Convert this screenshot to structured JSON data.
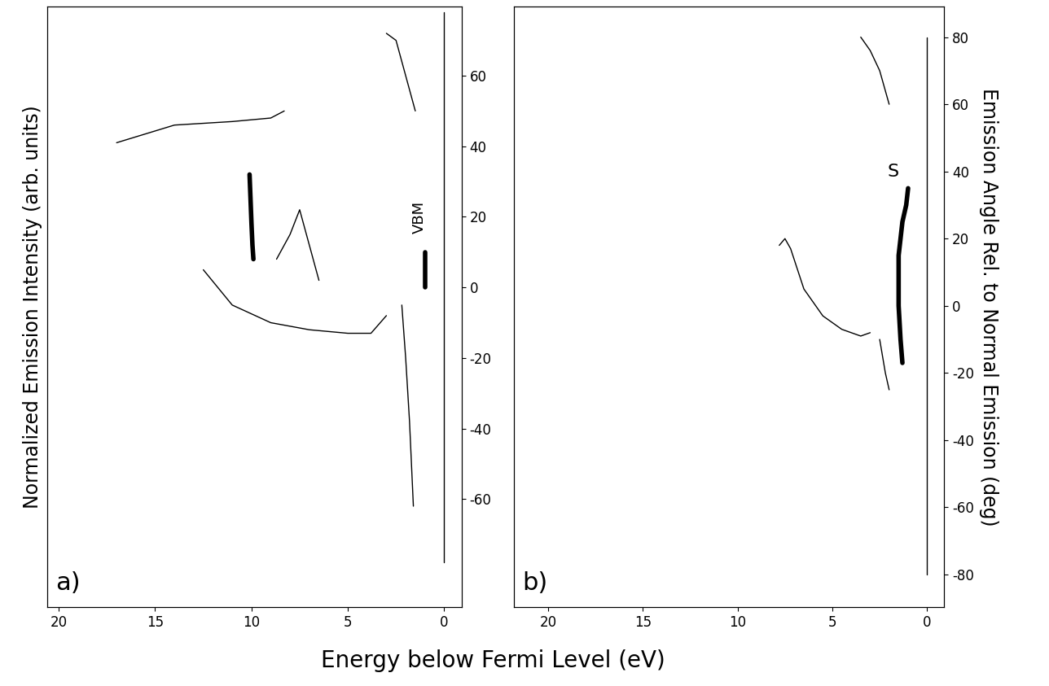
{
  "xlabel": "Energy below Fermi Level (eV)",
  "chart_data": [
    {
      "type": "line",
      "label": "a)",
      "ylabel": "Normalized Emission Intensity (arb. units)",
      "xlim": [
        20.6,
        -0.9
      ],
      "xticks": [
        20,
        15,
        10,
        5,
        0
      ],
      "y2lim": [
        -90.6,
        79.5
      ],
      "y2ticks": [
        -60,
        -40,
        -20,
        0,
        20,
        40,
        60
      ],
      "annotations": [
        {
          "text": "VBM",
          "x": 1.3,
          "y": 20
        }
      ],
      "series": [
        {
          "x": [
            10.1,
            10.05,
            10.0,
            9.95,
            9.9
          ],
          "values": [
            32,
            25,
            18,
            12,
            8
          ],
          "color": "#000000",
          "line_style": "thick",
          "axis": "y2"
        },
        {
          "x": [
            1.0,
            1.0
          ],
          "values": [
            0,
            10
          ],
          "color": "#000000",
          "line_style": "thick",
          "axis": "y2"
        },
        {
          "x": [
            0,
            0
          ],
          "values": [
            -78,
            78
          ],
          "color": "#000000",
          "line_style": "thin",
          "axis": "y2"
        },
        {
          "x": [
            8.7,
            8.0,
            7.5,
            7.0,
            6.5
          ],
          "values": [
            8,
            15,
            22,
            12,
            2
          ],
          "color": "#000000",
          "line_style": "thin",
          "axis": "y2"
        },
        {
          "x": [
            12.5,
            11.0,
            9.0,
            7.0,
            5.0,
            3.8,
            3.0
          ],
          "values": [
            5,
            -5,
            -10,
            -12,
            -13,
            -13,
            -8
          ],
          "color": "#000000",
          "line_style": "thin",
          "axis": "y2"
        },
        {
          "x": [
            3.0,
            2.5,
            2.0,
            1.5
          ],
          "values": [
            72,
            70,
            60,
            50
          ],
          "color": "#000000",
          "line_style": "thin",
          "axis": "y2"
        },
        {
          "x": [
            17.0,
            14.0,
            11.0,
            9.0,
            8.3
          ],
          "values": [
            41,
            46,
            47,
            48,
            50
          ],
          "color": "#000000",
          "line_style": "thin",
          "axis": "y2"
        },
        {
          "x": [
            2.2,
            2.0,
            1.8,
            1.6
          ],
          "values": [
            -5,
            -20,
            -38,
            -62
          ],
          "color": "#000000",
          "line_style": "thin",
          "axis": "y2"
        }
      ]
    },
    {
      "type": "line",
      "label": "b)",
      "y2label": "Emission Angle Rel. to Normal Emission (deg)",
      "xlim": [
        21.8,
        -0.9
      ],
      "xticks": [
        20,
        15,
        10,
        5,
        0
      ],
      "y2lim": [
        -89.7,
        89
      ],
      "y2ticks": [
        -80,
        -60,
        -40,
        -20,
        0,
        20,
        40,
        60,
        80
      ],
      "annotations": [
        {
          "text": "S",
          "x": 1.8,
          "y": 40
        }
      ],
      "series": [
        {
          "x": [
            1.0,
            1.1,
            1.3,
            1.5,
            1.5,
            1.4,
            1.3
          ],
          "values": [
            35,
            30,
            25,
            15,
            0,
            -10,
            -17
          ],
          "color": "#000000",
          "line_style": "thick",
          "axis": "y2"
        },
        {
          "x": [
            0,
            0
          ],
          "values": [
            -80,
            80
          ],
          "color": "#000000",
          "line_style": "thin",
          "axis": "y2"
        },
        {
          "x": [
            7.8,
            7.5,
            7.2,
            6.5,
            5.5,
            4.5,
            3.5,
            3.0
          ],
          "values": [
            18,
            20,
            17,
            5,
            -3,
            -7,
            -9,
            -8
          ],
          "color": "#000000",
          "line_style": "thin",
          "axis": "y2"
        },
        {
          "x": [
            3.5,
            3.0,
            2.5,
            2.0
          ],
          "values": [
            80,
            76,
            70,
            60
          ],
          "color": "#000000",
          "line_style": "thin",
          "axis": "y2"
        },
        {
          "x": [
            2.5,
            2.2,
            2.0
          ],
          "values": [
            -10,
            -20,
            -25
          ],
          "color": "#000000",
          "line_style": "thin",
          "axis": "y2"
        }
      ]
    }
  ]
}
